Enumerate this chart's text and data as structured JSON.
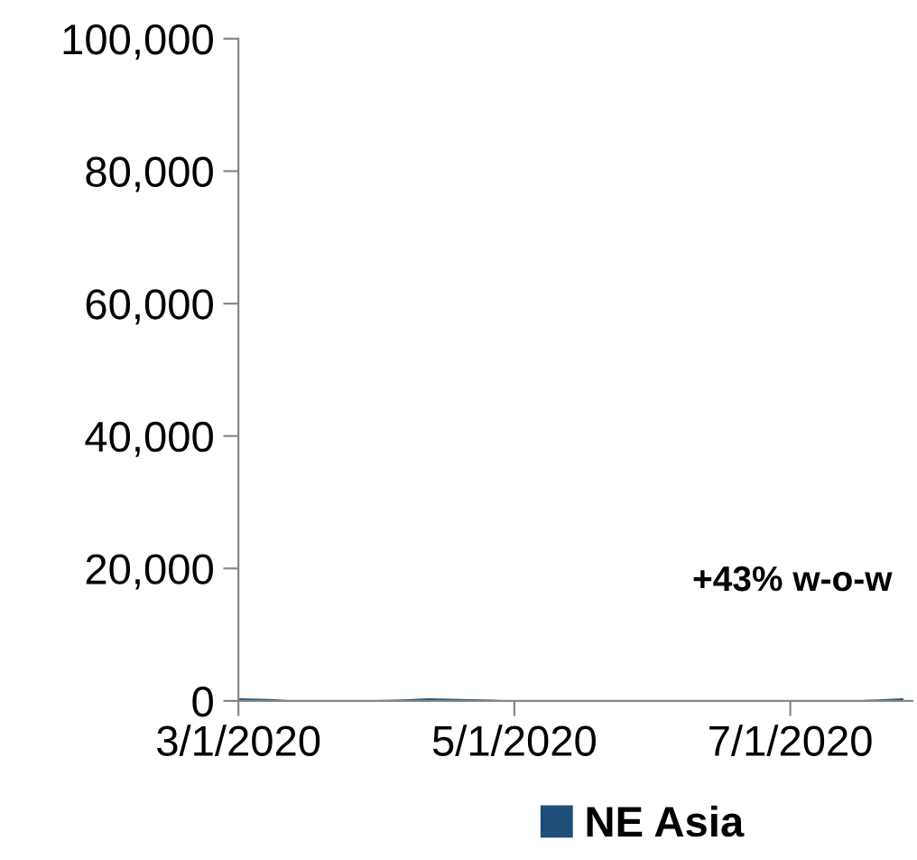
{
  "chart_data": {
    "type": "area",
    "x": [
      "2020-03-01",
      "2020-03-08",
      "2020-03-15",
      "2020-03-22",
      "2020-03-29",
      "2020-04-05",
      "2020-04-12",
      "2020-04-19",
      "2020-04-26",
      "2020-05-03",
      "2020-05-10",
      "2020-05-17",
      "2020-05-24",
      "2020-05-31",
      "2020-06-07",
      "2020-06-14",
      "2020-06-21",
      "2020-06-28",
      "2020-07-05",
      "2020-07-12",
      "2020-07-19",
      "2020-07-26"
    ],
    "series": [
      {
        "name": "NE Asia",
        "color": "#1f4e79",
        "values": [
          400,
          300,
          0,
          0,
          100,
          200,
          400,
          300,
          200,
          0,
          0,
          0,
          0,
          0,
          0,
          0,
          0,
          0,
          0,
          0,
          200,
          400
        ]
      }
    ],
    "xlim": [
      "2020-03-01",
      "2020-07-28"
    ],
    "xticks": [
      {
        "value": "2020-03-01",
        "label": "3/1/2020"
      },
      {
        "value": "2020-05-01",
        "label": "5/1/2020"
      },
      {
        "value": "2020-07-01",
        "label": "7/1/2020"
      }
    ],
    "ylim": [
      0,
      100000
    ],
    "yticks": [
      {
        "value": 0,
        "label": "0"
      },
      {
        "value": 20000,
        "label": "20,000"
      },
      {
        "value": 40000,
        "label": "40,000"
      },
      {
        "value": 60000,
        "label": "60,000"
      },
      {
        "value": 80000,
        "label": "80,000"
      },
      {
        "value": 100000,
        "label": "100,000"
      }
    ],
    "annotations": [
      "+43% w-o-w"
    ],
    "legend": "bottom",
    "grid": false
  }
}
